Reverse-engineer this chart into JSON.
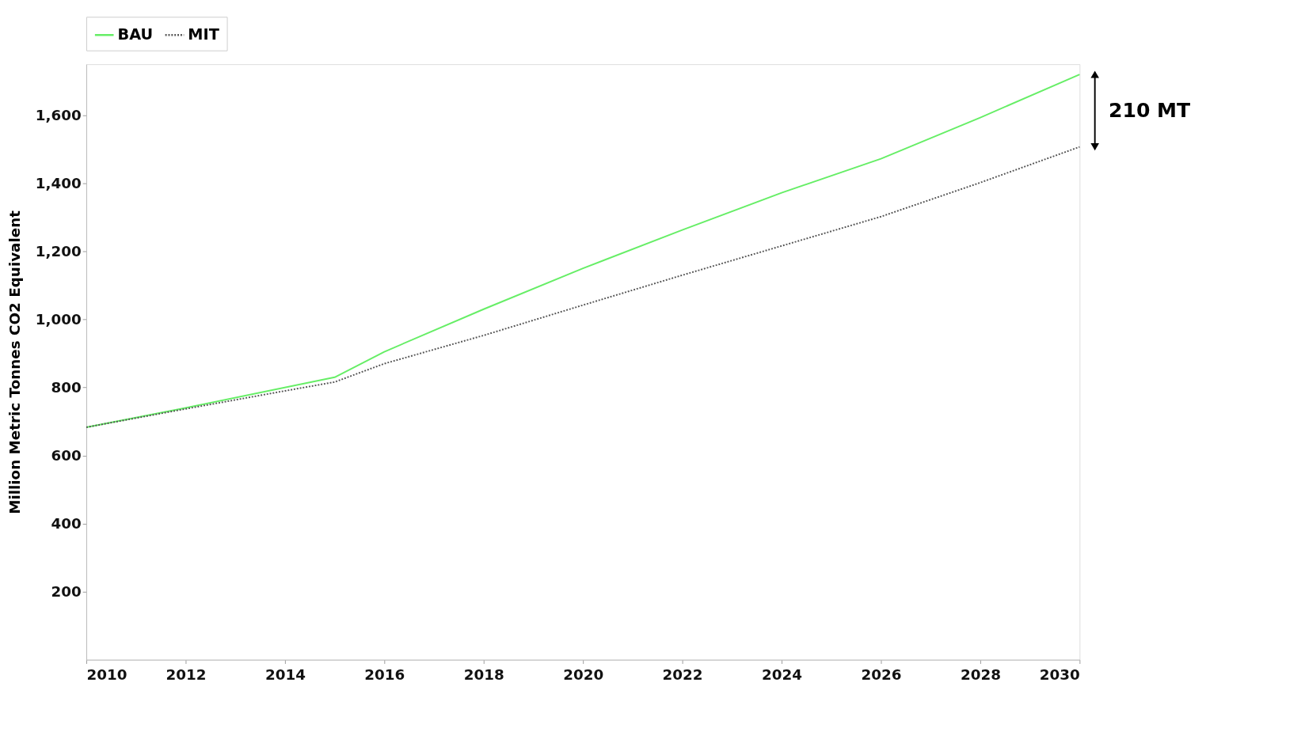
{
  "chart_data": {
    "type": "line",
    "ylabel": "Million Metric Tonnes CO2 Equivalent",
    "xlim": [
      2010,
      2030
    ],
    "xticks": [
      2010,
      2012,
      2014,
      2016,
      2018,
      2020,
      2022,
      2024,
      2026,
      2028,
      2030
    ],
    "ylim": [
      0,
      1750
    ],
    "yticks": [
      200,
      400,
      600,
      800,
      {
        "value": 1000,
        "label": "1,000"
      },
      {
        "value": 1200,
        "label": "1,200"
      },
      {
        "value": 1400,
        "label": "1,400"
      },
      {
        "value": 1600,
        "label": "1,600"
      }
    ],
    "grid": false,
    "legend": "top",
    "marker": "none",
    "series": [
      {
        "name": "BAU",
        "color": "#66ee66",
        "line_style": "solid",
        "x": [
          2010,
          2012,
          2015,
          2016,
          2018,
          2020,
          2022,
          2024,
          2026,
          2028,
          2030
        ],
        "values": [
          683,
          740,
          830,
          905,
          1030,
          1150,
          1263,
          1372,
          1472,
          1593,
          1720
        ]
      },
      {
        "name": "MIT",
        "color": "#555555",
        "line_style": "dotted",
        "x": [
          2010,
          2012,
          2014,
          2015,
          2016,
          2018,
          2020,
          2022,
          2024,
          2026,
          2028,
          2030
        ],
        "values": [
          683,
          737,
          790,
          816,
          870,
          953,
          1042,
          1130,
          1216,
          1302,
          1402,
          1507
        ]
      }
    ],
    "annotations": [
      "210 MT"
    ]
  }
}
